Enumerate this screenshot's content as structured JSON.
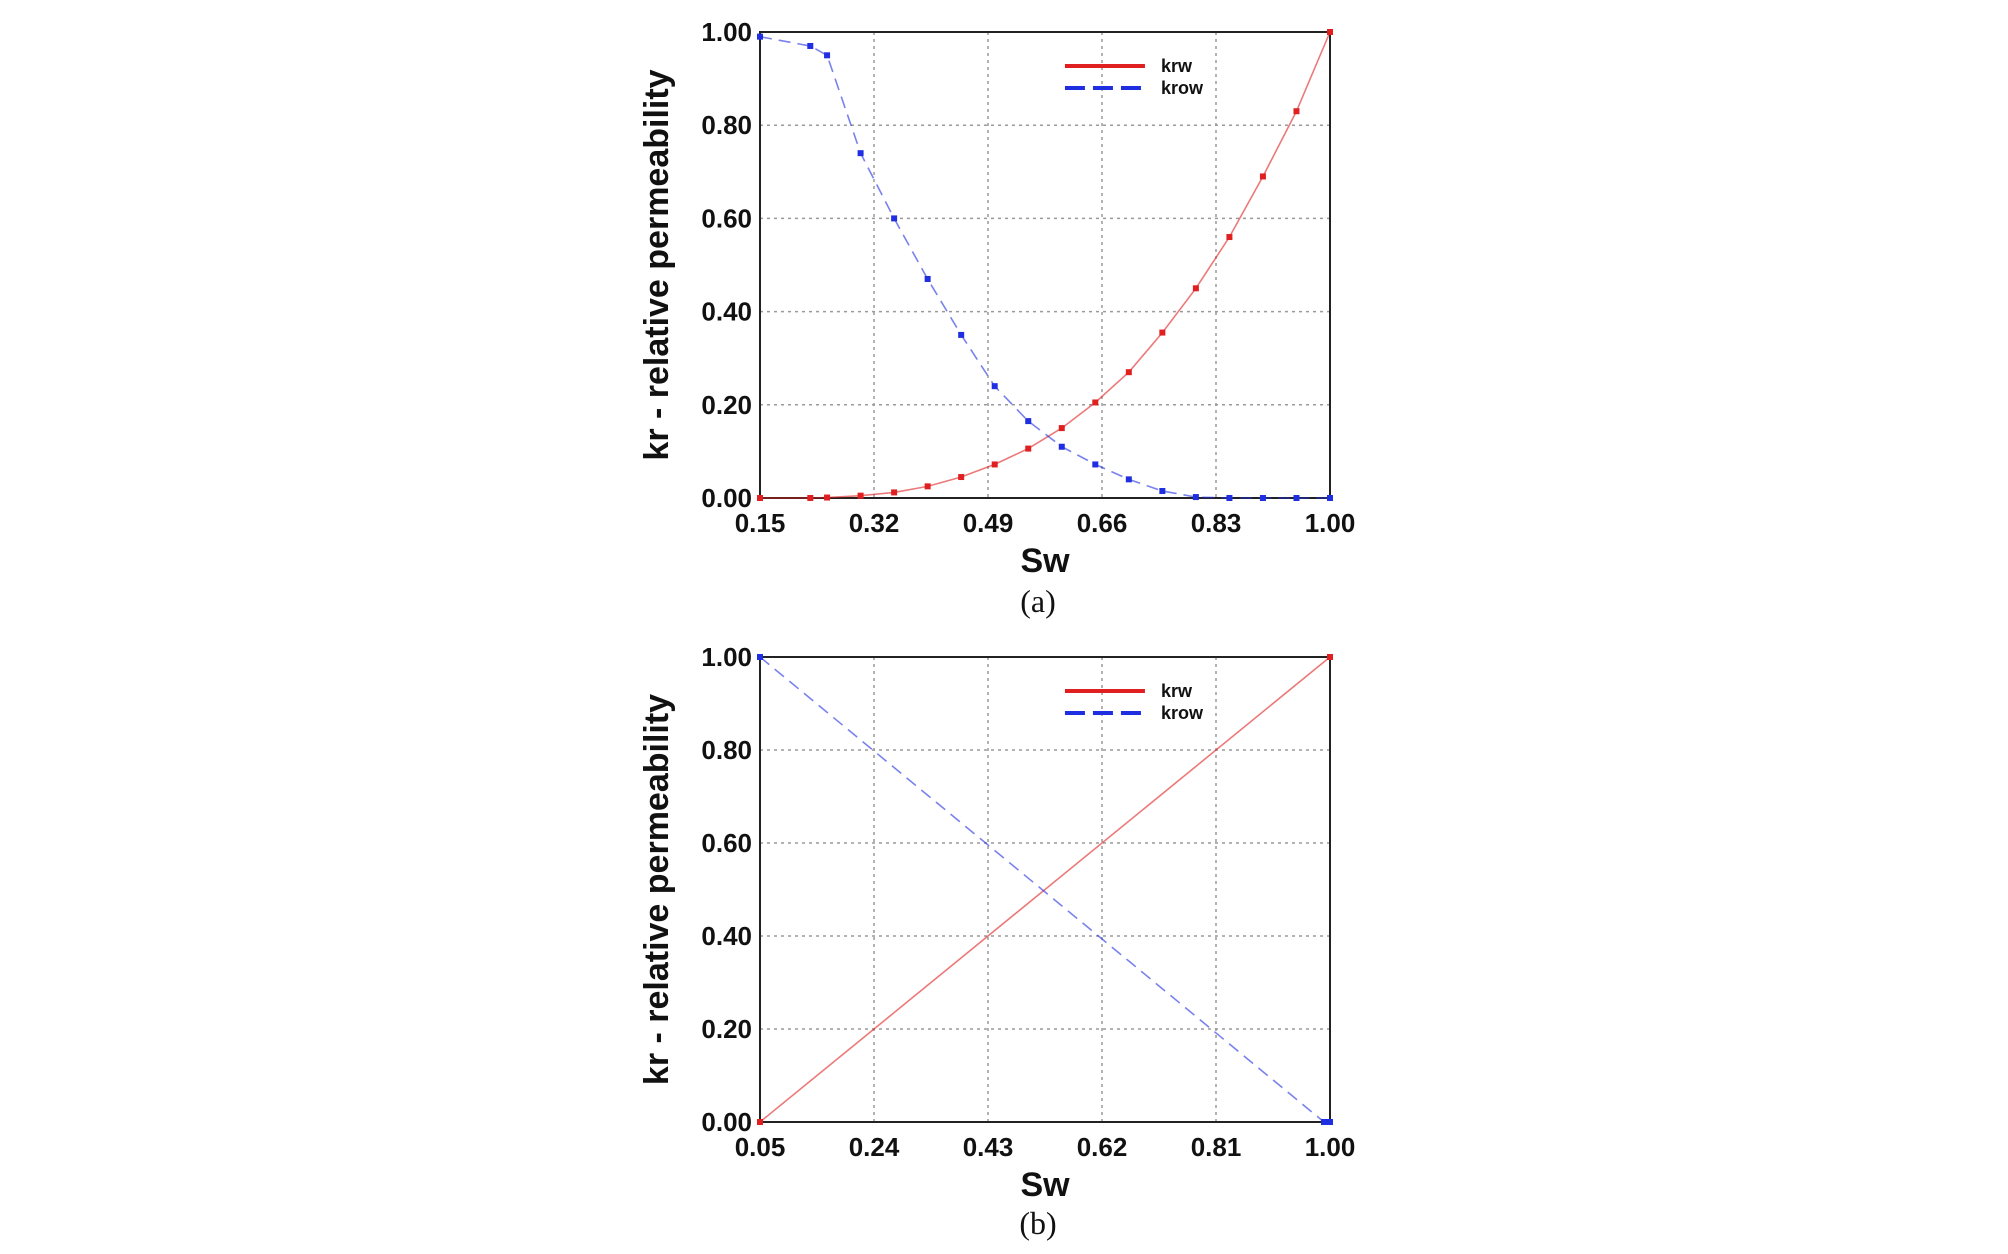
{
  "chart_data": [
    {
      "type": "line",
      "caption": "(a)",
      "xlabel": "Sw",
      "ylabel": "kr - relative permeability",
      "xlim": [
        0.15,
        1.0
      ],
      "ylim": [
        0.0,
        1.0
      ],
      "xticks": [
        "0.15",
        "0.32",
        "0.49",
        "0.66",
        "0.83",
        "1.00"
      ],
      "yticks": [
        "0.00",
        "0.20",
        "0.40",
        "0.60",
        "0.80",
        "1.00"
      ],
      "grid": true,
      "legend": "top-right",
      "series": [
        {
          "name": "krw",
          "color": "#e02020",
          "style": "solid",
          "x": [
            0.15,
            0.225,
            0.25,
            0.3,
            0.35,
            0.4,
            0.45,
            0.5,
            0.55,
            0.6,
            0.65,
            0.7,
            0.75,
            0.8,
            0.85,
            0.9,
            0.95,
            1.0
          ],
          "y": [
            0.0,
            0.0,
            0.001,
            0.005,
            0.012,
            0.025,
            0.045,
            0.072,
            0.106,
            0.15,
            0.205,
            0.27,
            0.355,
            0.45,
            0.56,
            0.69,
            0.83,
            1.0
          ]
        },
        {
          "name": "krow",
          "color": "#1f2ee0",
          "style": "dashed",
          "x": [
            0.15,
            0.225,
            0.25,
            0.3,
            0.35,
            0.4,
            0.45,
            0.5,
            0.55,
            0.6,
            0.65,
            0.7,
            0.75,
            0.8,
            0.85,
            0.9,
            0.95,
            1.0
          ],
          "y": [
            0.99,
            0.97,
            0.95,
            0.74,
            0.6,
            0.47,
            0.35,
            0.24,
            0.165,
            0.11,
            0.072,
            0.04,
            0.015,
            0.002,
            0.0,
            0.0,
            0.0,
            0.0
          ]
        }
      ]
    },
    {
      "type": "line",
      "caption": "(b)",
      "xlabel": "Sw",
      "ylabel": "kr - relative permeability",
      "xlim": [
        0.05,
        1.0
      ],
      "ylim": [
        0.0,
        1.0
      ],
      "xticks": [
        "0.05",
        "0.24",
        "0.43",
        "0.62",
        "0.81",
        "1.00"
      ],
      "yticks": [
        "0.00",
        "0.20",
        "0.40",
        "0.60",
        "0.80",
        "1.00"
      ],
      "grid": true,
      "legend": "top-right",
      "series": [
        {
          "name": "krw",
          "color": "#e02020",
          "style": "solid",
          "x": [
            0.05,
            1.0
          ],
          "y": [
            0.0,
            1.0
          ]
        },
        {
          "name": "krow",
          "color": "#1f2ee0",
          "style": "dashed",
          "x": [
            0.05,
            0.99,
            1.0
          ],
          "y": [
            1.0,
            0.0,
            0.0
          ]
        }
      ]
    }
  ]
}
